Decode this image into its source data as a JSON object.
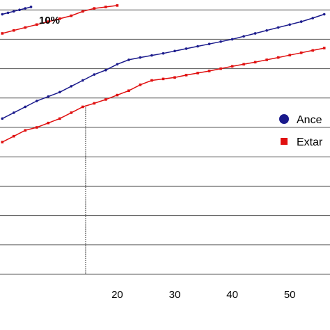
{
  "chart_data": {
    "type": "line",
    "grid": true,
    "xlim": [
      -1,
      57
    ],
    "ylim": [
      0,
      10
    ],
    "x_ticks": [
      10,
      20,
      30,
      40,
      50
    ],
    "x_tick_labels": [
      "",
      "20",
      "30",
      "40",
      "50"
    ],
    "y_gridlines": [
      1,
      2,
      3,
      4,
      5,
      6,
      7,
      8,
      9,
      10
    ],
    "reference_line_x": 14.5,
    "annotation": "10%",
    "legend": {
      "placement": "right",
      "entries": [
        "Ance",
        "Extar"
      ]
    },
    "series": [
      {
        "name": "Ance",
        "color": "#1a1a8c",
        "marker": "circle",
        "x": [
          0,
          1,
          2,
          3,
          4,
          5
        ],
        "y": [
          8.85,
          8.9,
          8.95,
          9.0,
          9.05,
          9.1
        ]
      },
      {
        "name": "Extar",
        "color": "#e01010",
        "marker": "square",
        "x": [
          0,
          2,
          4,
          6,
          8,
          10,
          12,
          14,
          16,
          18,
          20
        ],
        "y": [
          8.2,
          8.3,
          8.4,
          8.5,
          8.6,
          8.7,
          8.8,
          8.95,
          9.05,
          9.1,
          9.15
        ]
      },
      {
        "name": "Ance",
        "color": "#1a1a8c",
        "marker": "circle",
        "x": [
          0,
          2,
          4,
          6,
          8,
          10,
          12,
          14,
          16,
          18,
          20,
          22,
          24,
          26,
          28,
          30,
          32,
          34,
          36,
          38,
          40,
          42,
          44,
          46,
          48,
          50,
          52,
          54,
          56
        ],
        "y": [
          5.3,
          5.5,
          5.7,
          5.9,
          6.05,
          6.2,
          6.4,
          6.6,
          6.8,
          6.95,
          7.15,
          7.3,
          7.38,
          7.45,
          7.52,
          7.6,
          7.68,
          7.76,
          7.84,
          7.92,
          8.0,
          8.1,
          8.2,
          8.3,
          8.4,
          8.5,
          8.6,
          8.72,
          8.85
        ]
      },
      {
        "name": "Extar",
        "color": "#e01010",
        "marker": "square",
        "x": [
          0,
          2,
          4,
          6,
          8,
          10,
          12,
          14,
          16,
          18,
          20,
          22,
          24,
          26,
          28,
          30,
          32,
          34,
          36,
          38,
          40,
          42,
          44,
          46,
          48,
          50,
          52,
          54,
          56
        ],
        "y": [
          4.5,
          4.7,
          4.9,
          5.0,
          5.15,
          5.3,
          5.5,
          5.7,
          5.82,
          5.95,
          6.1,
          6.25,
          6.45,
          6.6,
          6.65,
          6.7,
          6.78,
          6.85,
          6.92,
          7.0,
          7.08,
          7.15,
          7.22,
          7.3,
          7.38,
          7.46,
          7.54,
          7.62,
          7.7
        ]
      }
    ]
  }
}
